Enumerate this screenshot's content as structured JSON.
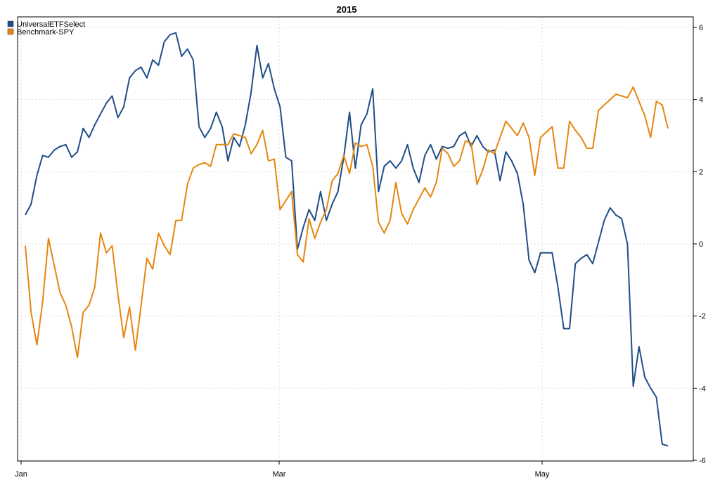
{
  "chart_data": {
    "type": "line",
    "title": "2015",
    "xlabel": "",
    "ylabel": "",
    "x_ticks": [
      "Jan",
      "Mar",
      "May"
    ],
    "ylim": [
      -6,
      6
    ],
    "y_ticks": [
      "-6",
      "-4",
      "-2",
      "0",
      "2",
      "4",
      "6"
    ],
    "y_axis_side": "right",
    "grid": true,
    "legend_position": "top-left",
    "series": [
      {
        "name": "UniversalETFSelect",
        "color": "#1f4e89",
        "values": [
          0.8,
          1.1,
          1.9,
          2.45,
          2.4,
          2.6,
          2.7,
          2.75,
          2.4,
          2.55,
          3.2,
          2.95,
          3.3,
          3.6,
          3.9,
          4.1,
          3.5,
          3.8,
          4.6,
          4.8,
          4.9,
          4.6,
          5.1,
          4.95,
          5.6,
          5.8,
          5.85,
          5.2,
          5.4,
          5.1,
          3.25,
          2.95,
          3.2,
          3.65,
          3.25,
          2.3,
          2.95,
          2.7,
          3.3,
          4.2,
          5.5,
          4.6,
          5.0,
          4.3,
          3.8,
          2.4,
          2.3,
          -0.15,
          0.45,
          0.95,
          0.65,
          1.45,
          0.65,
          1.1,
          1.45,
          2.4,
          3.65,
          2.1,
          3.3,
          3.6,
          4.3,
          1.45,
          2.15,
          2.3,
          2.1,
          2.3,
          2.75,
          2.1,
          1.7,
          2.45,
          2.75,
          2.35,
          2.7,
          2.65,
          2.7,
          3.0,
          3.1,
          2.7,
          3.0,
          2.7,
          2.55,
          2.6,
          1.75,
          2.55,
          2.3,
          1.95,
          1.1,
          -0.45,
          -0.8,
          -0.25,
          -0.25,
          -0.25,
          -1.2,
          -2.35,
          -2.35,
          -0.55,
          -0.4,
          -0.3,
          -0.55,
          0.05,
          0.65,
          1.0,
          0.8,
          0.7,
          0.0,
          -3.95,
          -2.85,
          -3.7,
          -4.0,
          -4.25,
          -5.55,
          -5.6
        ]
      },
      {
        "name": "Benchmark-SPY",
        "color": "#e6860f",
        "values": [
          -0.05,
          -1.9,
          -2.8,
          -1.6,
          0.15,
          -0.6,
          -1.35,
          -1.7,
          -2.3,
          -3.15,
          -1.9,
          -1.7,
          -1.2,
          0.3,
          -0.25,
          -0.05,
          -1.4,
          -2.6,
          -1.75,
          -2.95,
          -1.7,
          -0.4,
          -0.7,
          0.3,
          -0.05,
          -0.3,
          0.65,
          0.65,
          1.65,
          2.1,
          2.2,
          2.25,
          2.15,
          2.75,
          2.75,
          2.75,
          3.05,
          3.0,
          2.95,
          2.5,
          2.75,
          3.15,
          2.3,
          2.35,
          0.95,
          1.2,
          1.45,
          -0.3,
          -0.5,
          0.7,
          0.15,
          0.6,
          0.95,
          1.75,
          1.95,
          2.45,
          1.95,
          2.8,
          2.7,
          2.75,
          2.15,
          0.6,
          0.3,
          0.65,
          1.7,
          0.85,
          0.55,
          0.95,
          1.25,
          1.55,
          1.3,
          1.7,
          2.65,
          2.5,
          2.15,
          2.3,
          2.85,
          2.8,
          1.65,
          2.05,
          2.6,
          2.5,
          2.95,
          3.4,
          3.2,
          3.0,
          3.35,
          2.95,
          1.9,
          2.95,
          3.1,
          3.25,
          2.1,
          2.1,
          3.4,
          3.15,
          2.95,
          2.65,
          2.65,
          3.7,
          3.85,
          4.0,
          4.15,
          4.1,
          4.05,
          4.35,
          3.95,
          3.55,
          2.95,
          3.95,
          3.85,
          3.2
        ]
      }
    ]
  }
}
